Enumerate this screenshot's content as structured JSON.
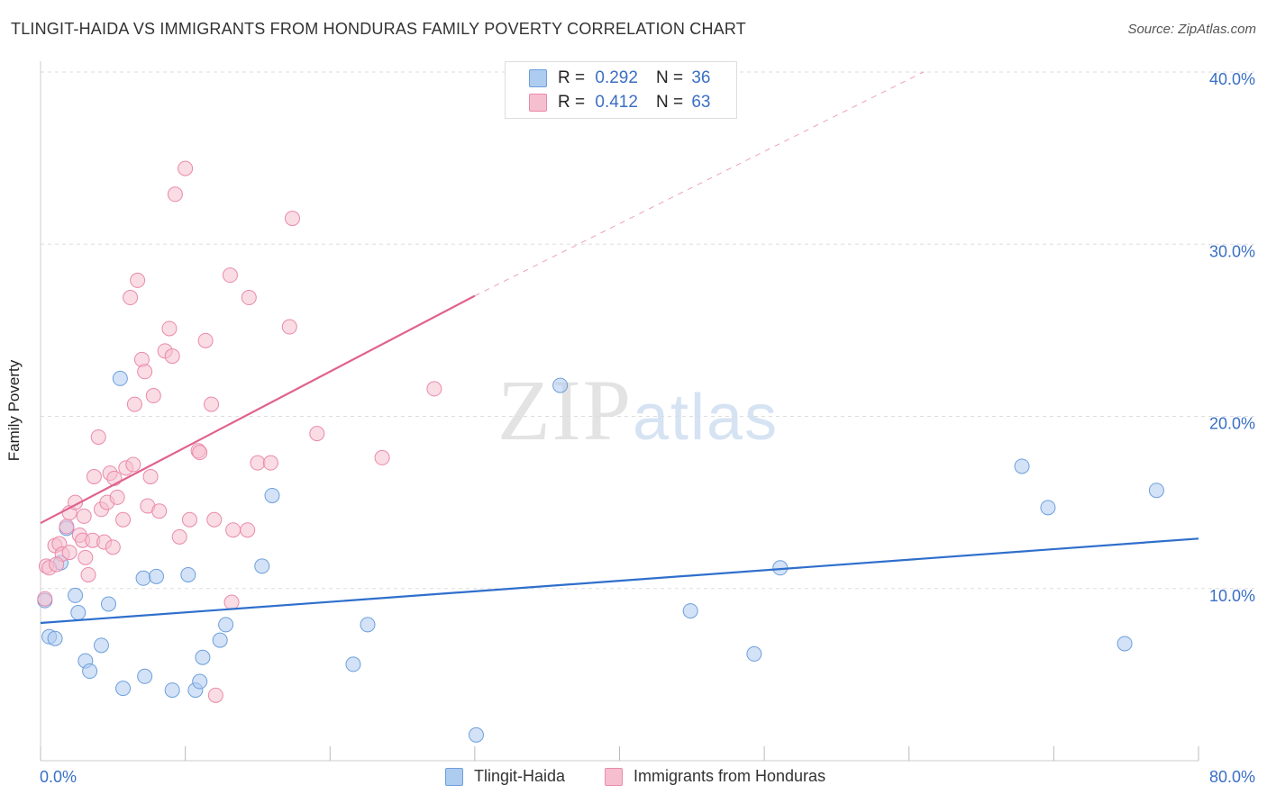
{
  "title": "TLINGIT-HAIDA VS IMMIGRANTS FROM HONDURAS FAMILY POVERTY CORRELATION CHART",
  "source": "Source: ZipAtlas.com",
  "watermark": {
    "zip": "ZIP",
    "atlas": "atlas"
  },
  "colors": {
    "blue_fill": "#aecbf0",
    "blue_stroke": "#6c9fdb",
    "blue_line": "#2f6fcc",
    "pink_fill": "#f6bfd0",
    "pink_stroke": "#e98aaa",
    "pink_line": "#e0628e",
    "grid": "#dddddd",
    "tick_text": "#3a6fc4"
  },
  "legend": {
    "r_label": "R =",
    "n_label": "N =",
    "rows": [
      {
        "r": "0.292",
        "n": "36",
        "swatch": "blue"
      },
      {
        "r": "0.412",
        "n": "63",
        "swatch": "pink"
      }
    ]
  },
  "chart_data": {
    "type": "scatter",
    "ylabel": "Family Poverty",
    "xlabel": "",
    "xlim": [
      0,
      80
    ],
    "ylim": [
      0,
      40
    ],
    "x_tick_labels": [
      "0.0%",
      "80.0%"
    ],
    "y_ticks": [
      10,
      20,
      30,
      40
    ],
    "y_tick_labels": [
      "10.0%",
      "20.0%",
      "30.0%",
      "40.0%"
    ],
    "grid": "horizontal dashed",
    "legend_position": "top-center",
    "series": [
      {
        "name": "Tlingit-Haida",
        "color": "blue",
        "points": [
          [
            0.3,
            9.3
          ],
          [
            0.6,
            7.2
          ],
          [
            1.0,
            7.1
          ],
          [
            1.4,
            11.5
          ],
          [
            1.8,
            13.5
          ],
          [
            2.4,
            9.6
          ],
          [
            2.6,
            8.6
          ],
          [
            3.1,
            5.8
          ],
          [
            3.4,
            5.2
          ],
          [
            4.2,
            6.7
          ],
          [
            4.7,
            9.1
          ],
          [
            5.5,
            22.2
          ],
          [
            5.7,
            4.2
          ],
          [
            7.1,
            10.6
          ],
          [
            7.2,
            4.9
          ],
          [
            8.0,
            10.7
          ],
          [
            9.1,
            4.1
          ],
          [
            10.2,
            10.8
          ],
          [
            10.7,
            4.1
          ],
          [
            11.0,
            4.6
          ],
          [
            11.2,
            6.0
          ],
          [
            12.4,
            7.0
          ],
          [
            12.8,
            7.9
          ],
          [
            15.3,
            11.3
          ],
          [
            16.0,
            15.4
          ],
          [
            21.6,
            5.6
          ],
          [
            22.6,
            7.9
          ],
          [
            30.1,
            1.5
          ],
          [
            35.9,
            21.8
          ],
          [
            44.9,
            8.7
          ],
          [
            49.3,
            6.2
          ],
          [
            51.1,
            11.2
          ],
          [
            67.8,
            17.1
          ],
          [
            69.6,
            14.7
          ],
          [
            74.9,
            6.8
          ],
          [
            77.1,
            15.7
          ]
        ]
      },
      {
        "name": "Immigrants from Honduras",
        "color": "pink",
        "points": [
          [
            0.3,
            9.4
          ],
          [
            0.4,
            11.3
          ],
          [
            0.6,
            11.2
          ],
          [
            1.0,
            12.5
          ],
          [
            1.3,
            12.6
          ],
          [
            1.5,
            12.0
          ],
          [
            1.8,
            13.6
          ],
          [
            2.0,
            14.4
          ],
          [
            2.4,
            15.0
          ],
          [
            2.7,
            13.1
          ],
          [
            2.9,
            12.8
          ],
          [
            3.1,
            11.8
          ],
          [
            3.3,
            10.8
          ],
          [
            3.6,
            12.8
          ],
          [
            3.7,
            16.5
          ],
          [
            4.0,
            18.8
          ],
          [
            4.2,
            14.6
          ],
          [
            4.4,
            12.7
          ],
          [
            4.6,
            15.0
          ],
          [
            4.8,
            16.7
          ],
          [
            5.0,
            12.4
          ],
          [
            5.1,
            16.4
          ],
          [
            5.3,
            15.3
          ],
          [
            5.7,
            14.0
          ],
          [
            5.9,
            17.0
          ],
          [
            6.2,
            26.9
          ],
          [
            6.4,
            17.2
          ],
          [
            6.5,
            20.7
          ],
          [
            6.7,
            27.9
          ],
          [
            7.0,
            23.3
          ],
          [
            7.2,
            22.6
          ],
          [
            7.4,
            14.8
          ],
          [
            7.6,
            16.5
          ],
          [
            7.8,
            21.2
          ],
          [
            8.2,
            14.5
          ],
          [
            8.6,
            23.8
          ],
          [
            8.9,
            25.1
          ],
          [
            9.1,
            23.5
          ],
          [
            9.3,
            32.9
          ],
          [
            9.6,
            13.0
          ],
          [
            10.0,
            34.4
          ],
          [
            10.3,
            14.0
          ],
          [
            10.9,
            18.0
          ],
          [
            11.0,
            17.9
          ],
          [
            11.4,
            24.4
          ],
          [
            11.8,
            20.7
          ],
          [
            12.1,
            3.8
          ],
          [
            12.0,
            14.0
          ],
          [
            13.1,
            28.2
          ],
          [
            13.2,
            9.2
          ],
          [
            13.3,
            13.4
          ],
          [
            14.3,
            13.4
          ],
          [
            14.4,
            26.9
          ],
          [
            15.0,
            17.3
          ],
          [
            15.9,
            17.3
          ],
          [
            17.2,
            25.2
          ],
          [
            17.4,
            31.5
          ],
          [
            19.1,
            19.0
          ],
          [
            23.6,
            17.6
          ],
          [
            27.2,
            21.6
          ],
          [
            1.1,
            11.4
          ],
          [
            2.0,
            12.1
          ],
          [
            3.0,
            14.2
          ]
        ]
      }
    ],
    "trend_lines": [
      {
        "series": "Tlingit-Haida",
        "x": [
          0,
          80
        ],
        "y": [
          8.0,
          12.9
        ],
        "style": "solid"
      },
      {
        "series": "Immigrants from Honduras",
        "x": [
          0,
          30
        ],
        "y": [
          13.8,
          27.0
        ],
        "style": "solid"
      },
      {
        "series": "Immigrants from Honduras",
        "x": [
          30,
          61
        ],
        "y": [
          27.0,
          40.0
        ],
        "style": "dashed"
      }
    ]
  },
  "bottom_legend": [
    {
      "label": "Tlingit-Haida",
      "swatch": "blue"
    },
    {
      "label": "Immigrants from Honduras",
      "swatch": "pink"
    }
  ]
}
